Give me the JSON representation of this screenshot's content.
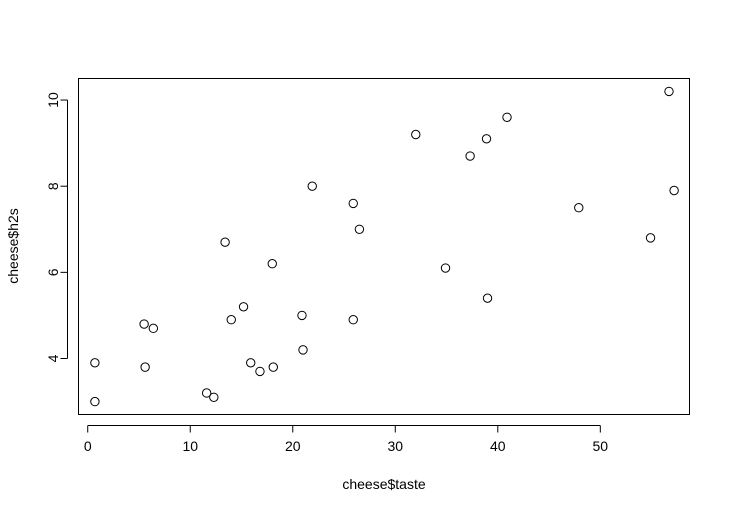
{
  "chart_data": {
    "type": "scatter",
    "title": "",
    "xlabel": "cheese$taste",
    "ylabel": "cheese$h2s",
    "xlim": [
      -0.9,
      58.7
    ],
    "ylim": [
      2.7,
      10.5
    ],
    "xticks": [
      0,
      10,
      20,
      30,
      40,
      50
    ],
    "yticks": [
      4,
      6,
      8,
      10
    ],
    "grid": false,
    "points": [
      {
        "x": 0.7,
        "y": 3.0
      },
      {
        "x": 0.7,
        "y": 3.9
      },
      {
        "x": 5.5,
        "y": 4.8
      },
      {
        "x": 5.6,
        "y": 3.8
      },
      {
        "x": 6.4,
        "y": 4.7
      },
      {
        "x": 11.6,
        "y": 3.2
      },
      {
        "x": 12.3,
        "y": 3.1
      },
      {
        "x": 13.4,
        "y": 6.7
      },
      {
        "x": 14.0,
        "y": 4.9
      },
      {
        "x": 15.2,
        "y": 5.2
      },
      {
        "x": 15.9,
        "y": 3.9
      },
      {
        "x": 16.8,
        "y": 3.7
      },
      {
        "x": 18.0,
        "y": 6.2
      },
      {
        "x": 18.1,
        "y": 3.8
      },
      {
        "x": 20.9,
        "y": 5.0
      },
      {
        "x": 21.0,
        "y": 4.2
      },
      {
        "x": 21.9,
        "y": 8.0
      },
      {
        "x": 25.9,
        "y": 4.9
      },
      {
        "x": 25.9,
        "y": 7.6
      },
      {
        "x": 26.5,
        "y": 7.0
      },
      {
        "x": 32.0,
        "y": 9.2
      },
      {
        "x": 34.9,
        "y": 6.1
      },
      {
        "x": 37.3,
        "y": 8.7
      },
      {
        "x": 38.9,
        "y": 9.1
      },
      {
        "x": 39.0,
        "y": 5.4
      },
      {
        "x": 40.9,
        "y": 9.6
      },
      {
        "x": 47.9,
        "y": 7.5
      },
      {
        "x": 54.9,
        "y": 6.8
      },
      {
        "x": 56.7,
        "y": 10.2
      },
      {
        "x": 57.2,
        "y": 7.9
      }
    ]
  }
}
